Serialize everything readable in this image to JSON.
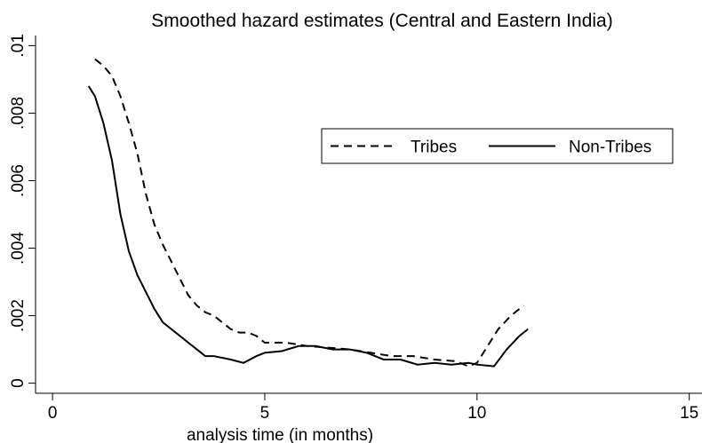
{
  "chart_data": {
    "type": "line",
    "title": "Smoothed hazard estimates (Central and Eastern India)",
    "xlabel": "analysis time (in months)",
    "xlim": [
      -0.4,
      15.3
    ],
    "xticks": [
      0,
      5,
      10,
      15
    ],
    "ylim": [
      -0.0003,
      0.0103
    ],
    "yticks": [
      0,
      {
        "value": 0.002,
        "label": ".002"
      },
      {
        "value": 0.004,
        "label": ".004"
      },
      {
        "value": 0.006,
        "label": ".006"
      },
      {
        "value": 0.008,
        "label": ".008"
      },
      {
        "value": 0.01,
        "label": ".01"
      }
    ],
    "legend": "upper right",
    "series": [
      {
        "name": "Tribes",
        "color": "#000000",
        "style": "dashed",
        "x": [
          1.0,
          1.2,
          1.4,
          1.6,
          1.8,
          2.0,
          2.2,
          2.4,
          2.6,
          2.8,
          3.0,
          3.2,
          3.4,
          3.6,
          3.8,
          4.0,
          4.2,
          4.4,
          4.6,
          4.8,
          5.0,
          5.5,
          6.0,
          6.5,
          7.0,
          7.5,
          8.0,
          8.5,
          9.0,
          9.5,
          9.8,
          10.0,
          10.2,
          10.5,
          10.8,
          11.1
        ],
        "values": [
          0.0096,
          0.0094,
          0.0091,
          0.0085,
          0.0077,
          0.0068,
          0.0056,
          0.0047,
          0.0041,
          0.0036,
          0.0031,
          0.0026,
          0.0023,
          0.0021,
          0.002,
          0.0018,
          0.0016,
          0.0015,
          0.0015,
          0.0014,
          0.0012,
          0.0012,
          0.0011,
          0.00105,
          0.001,
          0.0009,
          0.0008,
          0.0008,
          0.0007,
          0.00065,
          0.0005,
          0.0006,
          0.001,
          0.0016,
          0.002,
          0.0023
        ]
      },
      {
        "name": "Non-Tribes",
        "color": "#000000",
        "style": "solid",
        "x": [
          0.85,
          1.0,
          1.2,
          1.4,
          1.6,
          1.8,
          2.0,
          2.2,
          2.4,
          2.6,
          2.8,
          3.0,
          3.2,
          3.4,
          3.6,
          3.8,
          4.2,
          4.5,
          4.8,
          5.0,
          5.4,
          5.8,
          6.2,
          6.6,
          7.0,
          7.4,
          7.8,
          8.2,
          8.6,
          9.0,
          9.4,
          9.8,
          10.0,
          10.4,
          10.7,
          11.0,
          11.2
        ],
        "values": [
          0.0088,
          0.0085,
          0.0077,
          0.0066,
          0.005,
          0.0039,
          0.0032,
          0.0027,
          0.0022,
          0.0018,
          0.0016,
          0.0014,
          0.0012,
          0.001,
          0.0008,
          0.0008,
          0.0007,
          0.0006,
          0.0008,
          0.0009,
          0.00095,
          0.0011,
          0.0011,
          0.001,
          0.001,
          0.0009,
          0.0007,
          0.0007,
          0.00055,
          0.0006,
          0.00055,
          0.0006,
          0.00055,
          0.0005,
          0.001,
          0.0014,
          0.0016
        ]
      }
    ]
  }
}
